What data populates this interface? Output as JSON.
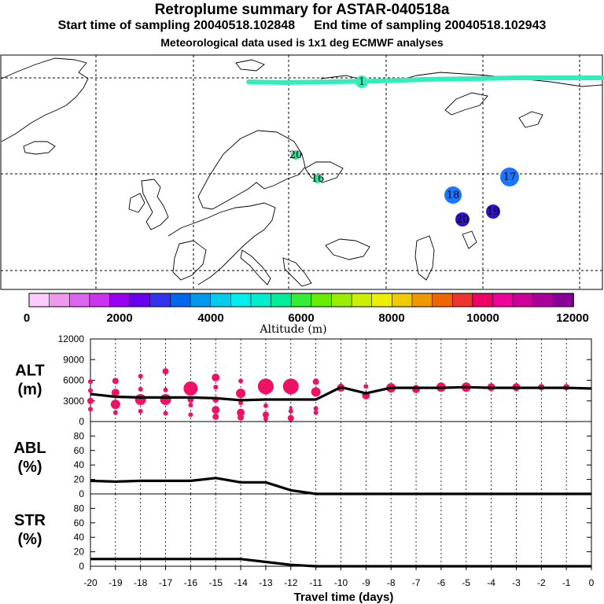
{
  "header": {
    "title": "Retroplume summary for ASTAR-040518a",
    "start": "Start time of sampling 20040518.102848",
    "end": "End time of sampling 20040518.102943",
    "met": "Meteorological data used is 1x1 deg ECMWF analyses"
  },
  "colors": {
    "plume": "#33eebb",
    "points": "#ee1166",
    "line": "#000000",
    "colorbar": [
      "#ffccff",
      "#ee99ee",
      "#dd66ee",
      "#cc33ee",
      "#9900ee",
      "#6600ee",
      "#3333ee",
      "#0066ee",
      "#0099ee",
      "#00ccee",
      "#00eeee",
      "#00eecc",
      "#00ee99",
      "#33ee33",
      "#66ee00",
      "#99ee00",
      "#ccee00",
      "#eeee00",
      "#eecc00",
      "#ee9900",
      "#ee6600",
      "#ee3333",
      "#ee0066",
      "#ee0099",
      "#cc0099",
      "#aa0099",
      "#880099"
    ]
  },
  "colorbar": {
    "ticks": [
      "0",
      "2000",
      "4000",
      "6000",
      "8000",
      "10000",
      "12000"
    ],
    "label": "Altitude (m)"
  },
  "map": {
    "markers": [
      {
        "label": "1",
        "color": "#33eebb",
        "r": 8
      },
      {
        "label": "17",
        "color": "#1a75ff",
        "r": 12
      },
      {
        "label": "18",
        "color": "#1a75ff",
        "r": 11
      },
      {
        "label": "19",
        "color": "#3311cc",
        "r": 9
      },
      {
        "label": "20",
        "color": "#33dd99",
        "r": 6
      },
      {
        "label": "16",
        "color": "#33dd99",
        "r": 6
      },
      {
        "label": "20",
        "color": "#3311cc",
        "r": 9
      }
    ]
  },
  "chart_data": [
    {
      "type": "line",
      "ylabel": "ALT",
      "yunit": "(m)",
      "ylim": [
        0,
        12000
      ],
      "yticks": [
        "12000",
        "9000",
        "6000",
        "3000",
        "0"
      ],
      "x": [
        -20,
        -19,
        -18,
        -17,
        -16,
        -15,
        -14,
        -13,
        -12,
        -11,
        -10,
        -9,
        -8,
        -7,
        -6,
        -5,
        -4,
        -3,
        -2,
        -1,
        0
      ],
      "values": [
        4000,
        3600,
        3500,
        3500,
        3500,
        3400,
        3100,
        3200,
        3200,
        3200,
        5000,
        4100,
        4900,
        4900,
        4900,
        5000,
        4900,
        4900,
        4900,
        4900,
        4800
      ],
      "points": [
        {
          "x": -20,
          "y": 5800,
          "s": 3
        },
        {
          "x": -20,
          "y": 4500,
          "s": 3
        },
        {
          "x": -20,
          "y": 3000,
          "s": 4
        },
        {
          "x": -20,
          "y": 1800,
          "s": 3
        },
        {
          "x": -19,
          "y": 5900,
          "s": 4
        },
        {
          "x": -19,
          "y": 4200,
          "s": 5
        },
        {
          "x": -19,
          "y": 2500,
          "s": 6
        },
        {
          "x": -19,
          "y": 1300,
          "s": 3
        },
        {
          "x": -18,
          "y": 6600,
          "s": 3
        },
        {
          "x": -18,
          "y": 4700,
          "s": 3
        },
        {
          "x": -18,
          "y": 3200,
          "s": 7
        },
        {
          "x": -18,
          "y": 1500,
          "s": 3
        },
        {
          "x": -17,
          "y": 7300,
          "s": 4
        },
        {
          "x": -17,
          "y": 4600,
          "s": 3
        },
        {
          "x": -17,
          "y": 3200,
          "s": 7
        },
        {
          "x": -17,
          "y": 1200,
          "s": 3
        },
        {
          "x": -16,
          "y": 4800,
          "s": 9
        },
        {
          "x": -16,
          "y": 3200,
          "s": 4
        },
        {
          "x": -16,
          "y": 2400,
          "s": 3
        },
        {
          "x": -16,
          "y": 1000,
          "s": 3
        },
        {
          "x": -15,
          "y": 6400,
          "s": 5
        },
        {
          "x": -15,
          "y": 5000,
          "s": 3
        },
        {
          "x": -15,
          "y": 3200,
          "s": 4
        },
        {
          "x": -15,
          "y": 1700,
          "s": 5
        },
        {
          "x": -15,
          "y": 700,
          "s": 4
        },
        {
          "x": -14,
          "y": 5900,
          "s": 3
        },
        {
          "x": -14,
          "y": 4100,
          "s": 6
        },
        {
          "x": -14,
          "y": 2700,
          "s": 3
        },
        {
          "x": -14,
          "y": 1300,
          "s": 5
        },
        {
          "x": -14,
          "y": 600,
          "s": 4
        },
        {
          "x": -13,
          "y": 5100,
          "s": 10
        },
        {
          "x": -13,
          "y": 2300,
          "s": 3
        },
        {
          "x": -13,
          "y": 1000,
          "s": 4
        },
        {
          "x": -13,
          "y": 400,
          "s": 3
        },
        {
          "x": -12,
          "y": 5100,
          "s": 10
        },
        {
          "x": -12,
          "y": 2000,
          "s": 2
        },
        {
          "x": -12,
          "y": 1500,
          "s": 3
        },
        {
          "x": -12,
          "y": 500,
          "s": 4
        },
        {
          "x": -11,
          "y": 5800,
          "s": 4
        },
        {
          "x": -11,
          "y": 4300,
          "s": 6
        },
        {
          "x": -11,
          "y": 1900,
          "s": 3
        },
        {
          "x": -11,
          "y": 1300,
          "s": 3
        },
        {
          "x": -10,
          "y": 4900,
          "s": 5
        },
        {
          "x": -10,
          "y": 5200,
          "s": 3
        },
        {
          "x": -9,
          "y": 3800,
          "s": 5
        },
        {
          "x": -9,
          "y": 5100,
          "s": 3
        },
        {
          "x": -8,
          "y": 4900,
          "s": 6
        },
        {
          "x": -7,
          "y": 4700,
          "s": 5
        },
        {
          "x": -7,
          "y": 5000,
          "s": 3
        },
        {
          "x": -6,
          "y": 5000,
          "s": 6
        },
        {
          "x": -5,
          "y": 5000,
          "s": 6
        },
        {
          "x": -4,
          "y": 5000,
          "s": 5
        },
        {
          "x": -3,
          "y": 5000,
          "s": 5
        },
        {
          "x": -2,
          "y": 5000,
          "s": 4
        },
        {
          "x": -1,
          "y": 5000,
          "s": 4
        }
      ]
    },
    {
      "type": "line",
      "ylabel": "ABL",
      "yunit": "(%)",
      "ylim": [
        0,
        100
      ],
      "yticks": [
        "80",
        "60",
        "40",
        "20",
        "0"
      ],
      "x": [
        -20,
        -19,
        -18,
        -17,
        -16,
        -15,
        -14,
        -13,
        -12,
        -11,
        -10,
        -9,
        -8,
        -7,
        -6,
        -5,
        -4,
        -3,
        -2,
        -1,
        0
      ],
      "values": [
        18,
        17,
        18,
        18,
        18,
        22,
        16,
        16,
        5,
        0,
        0,
        0,
        0,
        0,
        0,
        0,
        0,
        0,
        0,
        0,
        0
      ]
    },
    {
      "type": "line",
      "ylabel": "STR",
      "yunit": "(%)",
      "ylim": [
        0,
        100
      ],
      "yticks": [
        "80",
        "60",
        "40",
        "20",
        "0"
      ],
      "x": [
        -20,
        -19,
        -18,
        -17,
        -16,
        -15,
        -14,
        -13,
        -12,
        -11,
        -10,
        -9,
        -8,
        -7,
        -6,
        -5,
        -4,
        -3,
        -2,
        -1,
        0
      ],
      "values": [
        10,
        10,
        10,
        10,
        10,
        10,
        10,
        6,
        2,
        0,
        0,
        0,
        0,
        0,
        0,
        0,
        0,
        0,
        0,
        0,
        0
      ]
    }
  ],
  "xaxis": {
    "label": "Travel time (days)",
    "ticks": [
      "-20",
      "-19",
      "-18",
      "-17",
      "-16",
      "-15",
      "-14",
      "-13",
      "-12",
      "-11",
      "-10",
      "-9",
      "-8",
      "-7",
      "-6",
      "-5",
      "-4",
      "-3",
      "-2",
      "-1",
      "0"
    ]
  }
}
